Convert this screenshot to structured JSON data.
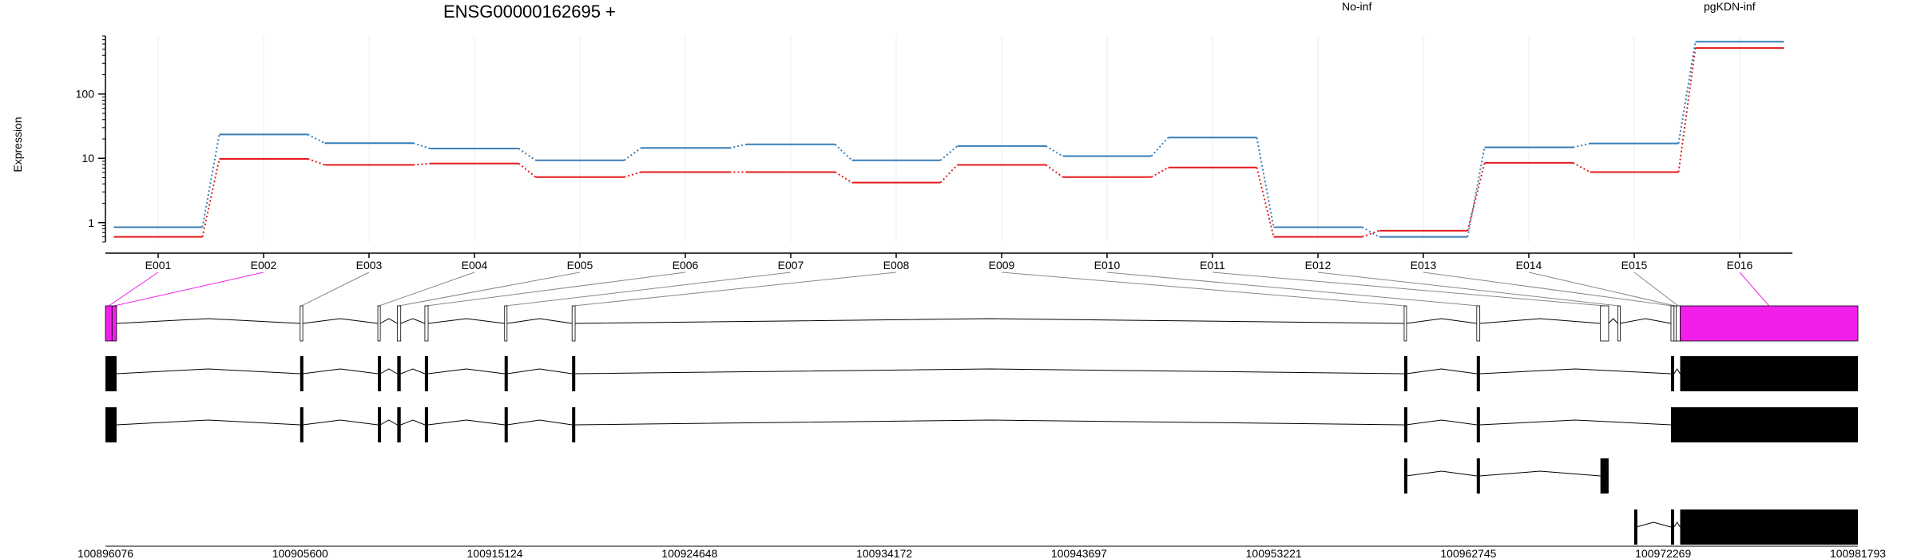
{
  "chart_data": {
    "type": "line",
    "title": "ENSG00000162695 +",
    "ylabel": "Expression",
    "y_scale": "log",
    "ylim": [
      0.5,
      800
    ],
    "y_ticks": [
      {
        "value": 1,
        "label": "1"
      },
      {
        "value": 10,
        "label": "10"
      },
      {
        "value": 100,
        "label": "100"
      }
    ],
    "grid": "vertical at exons",
    "legend_placement": "top-right",
    "categories": [
      "E001",
      "E002",
      "E003",
      "E004",
      "E005",
      "E006",
      "E007",
      "E008",
      "E009",
      "E010",
      "E011",
      "E012",
      "E013",
      "E014",
      "E015",
      "E016"
    ],
    "series": [
      {
        "name": "No-inf",
        "color": "#E41A1C",
        "values": [
          0.6,
          9.8,
          7.9,
          8.3,
          5.1,
          6.1,
          6.1,
          4.2,
          7.9,
          5.1,
          7.2,
          0.6,
          0.75,
          8.5,
          6.1,
          520
        ]
      },
      {
        "name": "pgKDN-inf",
        "color": "#377EB8",
        "values": [
          0.85,
          23.5,
          17.2,
          14.2,
          9.3,
          14.5,
          16.5,
          9.3,
          15.5,
          10.8,
          21.0,
          0.85,
          0.6,
          14.8,
          17.0,
          650
        ]
      }
    ],
    "genome_axis": {
      "range": [
        100896076,
        100981793
      ],
      "tick_labels": [
        "100896076",
        "100905600",
        "100915124",
        "100924648",
        "100934172",
        "100943697",
        "100953221",
        "100962745",
        "100972269",
        "100981793"
      ]
    },
    "exon_bins": [
      [
        100896076,
        100896400
      ],
      [
        100896400,
        100896620
      ],
      [
        100905600,
        100905730
      ],
      [
        100909400,
        100909520
      ],
      [
        100910350,
        100910520
      ],
      [
        100911700,
        100911860
      ],
      [
        100915600,
        100915720
      ],
      [
        100918900,
        100919050
      ],
      [
        100959600,
        100959700
      ],
      [
        100963150,
        100963300
      ],
      [
        100969200,
        100969600
      ],
      [
        100970050,
        100970150
      ],
      [
        100972650,
        100972800
      ],
      [
        100972800,
        100972900
      ],
      [
        100972900,
        100973100
      ],
      [
        100973100,
        100981793
      ]
    ],
    "highlight_exons": [
      "E001",
      "E002",
      "E016"
    ],
    "highlight_color": "#F21FEB",
    "transcripts": [
      {
        "exons": [
          [
            100896076,
            100896620
          ],
          [
            100905600,
            100905730
          ],
          [
            100909400,
            100909520
          ],
          [
            100910350,
            100910520
          ],
          [
            100911700,
            100911860
          ],
          [
            100915600,
            100915720
          ],
          [
            100918900,
            100919050
          ],
          [
            100959600,
            100959700
          ],
          [
            100963150,
            100963300
          ],
          [
            100972650,
            100972800
          ],
          [
            100973100,
            100981793
          ]
        ]
      },
      {
        "exons": [
          [
            100896076,
            100896620
          ],
          [
            100905600,
            100905730
          ],
          [
            100909400,
            100909520
          ],
          [
            100910350,
            100910520
          ],
          [
            100911700,
            100911860
          ],
          [
            100915600,
            100915720
          ],
          [
            100918900,
            100919050
          ],
          [
            100959600,
            100959700
          ],
          [
            100963150,
            100963300
          ],
          [
            100972650,
            100981793
          ]
        ]
      },
      {
        "exons": [
          [
            100959600,
            100959700
          ],
          [
            100963150,
            100963300
          ],
          [
            100969200,
            100969600
          ]
        ]
      },
      {
        "exons": [
          [
            100970850,
            100970950
          ],
          [
            100972650,
            100972800
          ],
          [
            100973100,
            100981793
          ]
        ]
      }
    ]
  }
}
